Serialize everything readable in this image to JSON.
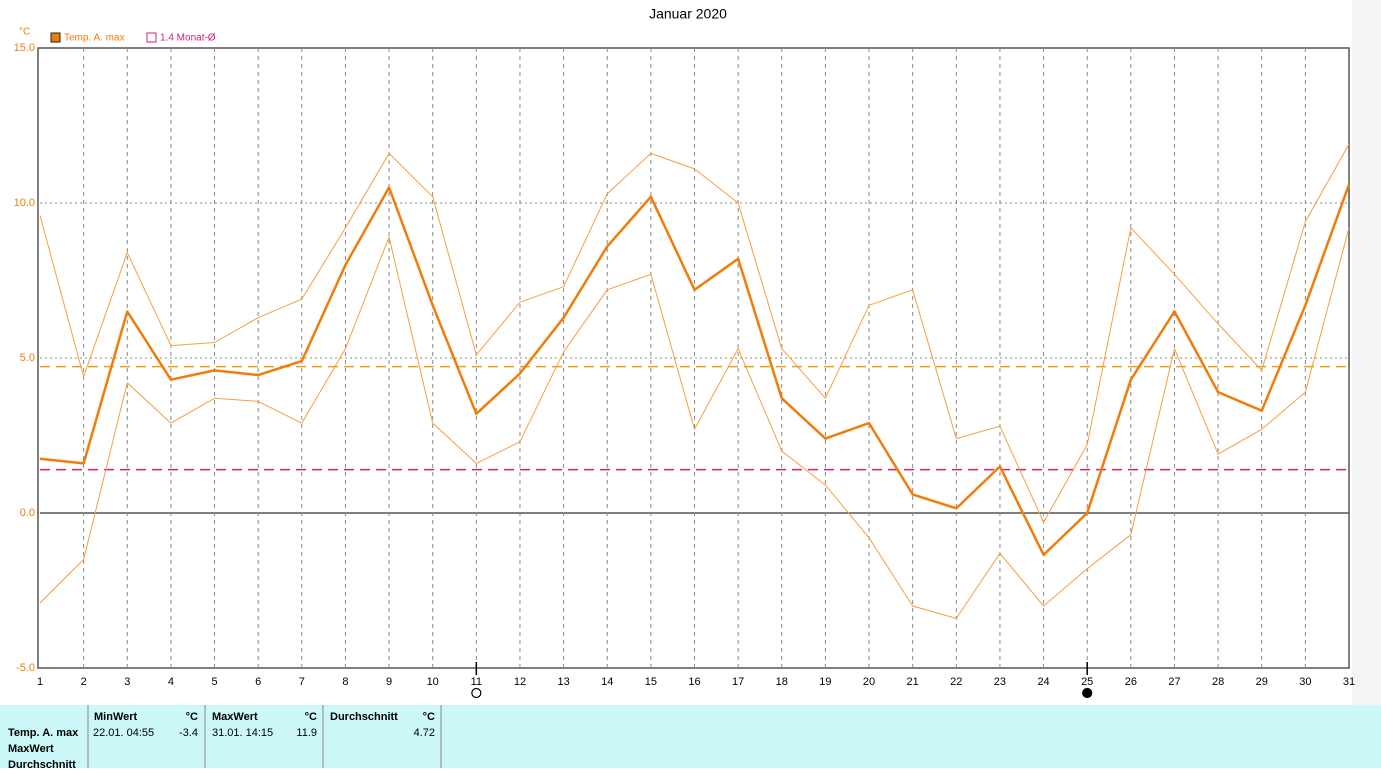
{
  "chart_data": {
    "type": "line",
    "title": "Januar 2020",
    "y_unit": "°C",
    "x": [
      1,
      2,
      3,
      4,
      5,
      6,
      7,
      8,
      9,
      10,
      11,
      12,
      13,
      14,
      15,
      16,
      17,
      18,
      19,
      20,
      21,
      22,
      23,
      24,
      25,
      26,
      27,
      28,
      29,
      30,
      31
    ],
    "xlim": [
      1,
      31
    ],
    "xticks": [
      1,
      2,
      3,
      4,
      5,
      6,
      7,
      8,
      9,
      10,
      11,
      12,
      13,
      14,
      15,
      16,
      17,
      18,
      19,
      20,
      21,
      22,
      23,
      24,
      25,
      26,
      27,
      28,
      29,
      30,
      31
    ],
    "ylim": [
      -5,
      15
    ],
    "yticks": [
      {
        "value": -5,
        "label": "-5.0"
      },
      {
        "value": 0,
        "label": "0.0"
      },
      {
        "value": 5,
        "label": "5.0"
      },
      {
        "value": 10,
        "label": "10.0"
      },
      {
        "value": 15,
        "label": "15.0"
      }
    ],
    "grid": true,
    "series": [
      {
        "name": "Temp. A. max",
        "color": "#f07d0a",
        "width": 2.5,
        "values": [
          1.75,
          1.6,
          6.5,
          4.3,
          4.6,
          4.45,
          4.9,
          8.0,
          10.5,
          6.7,
          3.2,
          4.5,
          6.3,
          8.6,
          10.2,
          7.2,
          8.2,
          3.7,
          2.4,
          2.9,
          0.6,
          0.15,
          1.5,
          -1.35,
          0.0,
          4.3,
          6.5,
          3.9,
          3.3,
          6.7,
          10.6
        ]
      },
      {
        "color": "#f5a040",
        "width": 1,
        "values": [
          9.6,
          4.4,
          8.4,
          5.4,
          5.5,
          6.3,
          6.9,
          9.2,
          11.6,
          10.2,
          5.1,
          6.8,
          7.3,
          10.3,
          11.6,
          11.1,
          10.0,
          5.3,
          3.7,
          6.7,
          7.2,
          2.4,
          2.8,
          -0.3,
          2.2,
          9.2,
          7.7,
          6.1,
          4.6,
          9.4,
          11.9
        ]
      },
      {
        "color": "#f5a040",
        "width": 1,
        "values": [
          -2.9,
          -1.5,
          4.2,
          2.9,
          3.7,
          3.6,
          2.9,
          5.3,
          8.9,
          2.9,
          1.6,
          2.3,
          5.2,
          7.2,
          7.7,
          2.7,
          5.3,
          2.0,
          0.9,
          -0.8,
          -3.0,
          -3.4,
          -1.3,
          -3.0,
          -1.8,
          -0.7,
          5.3,
          1.9,
          2.7,
          3.9,
          9.2
        ]
      }
    ],
    "reference_lines": [
      {
        "value": 4.72,
        "color": "#e8a020"
      },
      {
        "value": 1.4,
        "label": "1.4 Monat-Ø",
        "color": "#d0207a"
      }
    ],
    "moon_markers": [
      {
        "x": 11,
        "filled": false
      },
      {
        "x": 25,
        "filled": true
      }
    ]
  },
  "stats": {
    "headers": [
      "MinWert",
      "°C",
      "MaxWert",
      "°C",
      "Durchschnitt",
      "°C"
    ],
    "row_labels": [
      "Temp. A. max",
      "MaxWert",
      "Durchschnitt"
    ],
    "row": [
      "22.01.  04:55",
      -3.4,
      "31.01.  14:15",
      11.9,
      4.72
    ]
  }
}
